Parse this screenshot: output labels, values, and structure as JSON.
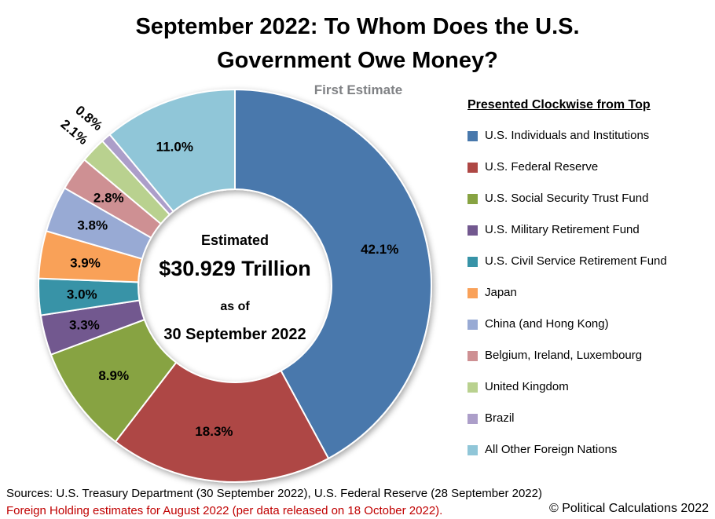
{
  "header": {
    "title_line1": "September 2022: To Whom Does the U.S.",
    "title_line2": "Government Owe Money?",
    "subtitle": "First Estimate"
  },
  "center_label": {
    "line1": "Estimated",
    "line2": "$30.929 Trillion",
    "line3": "as of",
    "line4": "30 September 2022"
  },
  "legend": {
    "title": "Presented Clockwise from Top"
  },
  "chart_data": {
    "type": "pie",
    "subtype": "donut",
    "title": "September 2022: To Whom Does the U.S. Government Owe Money?",
    "subtitle": "First Estimate",
    "center_text": "Estimated $30.929 Trillion as of 30 September 2022",
    "total_value_trillions": 30.929,
    "units": "percent share",
    "direction": "clockwise",
    "start_angle_deg": 0,
    "donut_hole_ratio": 0.49,
    "legend_position": "right",
    "slices": [
      {
        "label": "U.S. Individuals and Institutions",
        "value": 42.1,
        "display": "42.1%",
        "color": "#4878AC",
        "label_placement": "inside"
      },
      {
        "label": "U.S. Federal Reserve",
        "value": 18.3,
        "display": "18.3%",
        "color": "#AE4744",
        "label_placement": "inside"
      },
      {
        "label": "U.S. Social Security Trust Fund",
        "value": 8.9,
        "display": "8.9%",
        "color": "#87A342",
        "label_placement": "inside"
      },
      {
        "label": "U.S. Military Retirement Fund",
        "value": 3.3,
        "display": "3.3%",
        "color": "#72588F",
        "label_placement": "inside"
      },
      {
        "label": "U.S. Civil Service Retirement Fund",
        "value": 3.0,
        "display": "3.0%",
        "color": "#3793A7",
        "label_placement": "inside"
      },
      {
        "label": "Japan",
        "value": 3.9,
        "display": "3.9%",
        "color": "#F9A159",
        "label_placement": "inside"
      },
      {
        "label": "China (and Hong Kong)",
        "value": 3.8,
        "display": "3.8%",
        "color": "#98AAD4",
        "label_placement": "inside"
      },
      {
        "label": "Belgium, Ireland, Luxembourg",
        "value": 2.8,
        "display": "2.8%",
        "color": "#CE9093",
        "label_placement": "inside"
      },
      {
        "label": "United Kingdom",
        "value": 2.1,
        "display": "2.1%",
        "color": "#B9D18F",
        "label_placement": "outside-rotated"
      },
      {
        "label": "Brazil",
        "value": 0.8,
        "display": "0.8%",
        "color": "#AC9EC9",
        "label_placement": "outside-rotated"
      },
      {
        "label": "All Other Foreign Nations",
        "value": 11.0,
        "display": "11.0%",
        "color": "#90C6D8",
        "label_placement": "inside"
      }
    ]
  },
  "footer": {
    "sources": "Sources: U.S. Treasury Department (30 September 2022), U.S. Federal Reserve (28 September 2022)",
    "note": "Foreign Holding estimates for August 2022 (per data released on 18 October 2022).",
    "note_color": "#C00000",
    "copyright": "© Political Calculations 2022"
  }
}
